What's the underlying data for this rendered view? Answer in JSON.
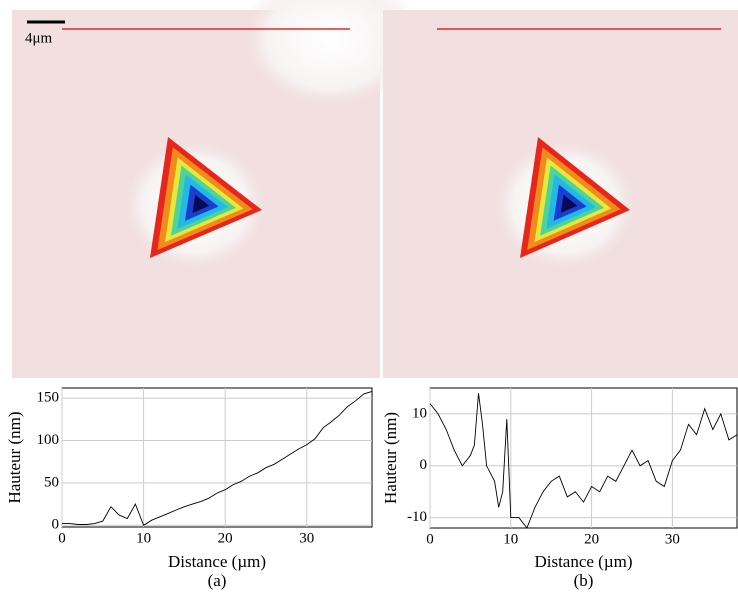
{
  "scale_bar": "4μm",
  "chart_data": [
    {
      "type": "line",
      "caption": "(a)",
      "x_label": "Distance (µm)",
      "y_label": "Hauteur (nm)",
      "color": "#000000",
      "grid": true,
      "xlim": [
        0,
        38
      ],
      "ylim": [
        -2,
        162
      ],
      "xticks": [
        0,
        10,
        20,
        30
      ],
      "yticks": [
        0,
        50,
        100,
        150
      ],
      "x": [
        0,
        1,
        2,
        3,
        4,
        5,
        6,
        7,
        8,
        9,
        10,
        11,
        12,
        13,
        14,
        15,
        16,
        17,
        18,
        19,
        20,
        21,
        22,
        23,
        24,
        25,
        26,
        27,
        28,
        29,
        30,
        31,
        32,
        33,
        34,
        35,
        36,
        37,
        38
      ],
      "values": [
        2,
        2,
        1,
        1,
        2,
        5,
        22,
        12,
        8,
        25,
        0,
        6,
        10,
        14,
        18,
        22,
        25,
        28,
        32,
        38,
        42,
        48,
        52,
        58,
        62,
        68,
        72,
        78,
        84,
        90,
        95,
        102,
        115,
        122,
        130,
        140,
        147,
        155,
        158
      ]
    },
    {
      "type": "line",
      "caption": "(b)",
      "x_label": "Distance (µm)",
      "y_label": "Hauteur (nm)",
      "color": "#000000",
      "grid": true,
      "xlim": [
        0,
        38
      ],
      "ylim": [
        -12,
        15
      ],
      "xticks": [
        0,
        10,
        20,
        30
      ],
      "yticks": [
        -10,
        0,
        10
      ],
      "x": [
        0,
        1,
        2,
        3,
        4,
        5,
        5.5,
        6,
        6.5,
        7,
        8,
        8.5,
        9,
        9.5,
        10,
        11,
        12,
        13,
        14,
        15,
        16,
        17,
        18,
        19,
        20,
        21,
        22,
        23,
        24,
        25,
        26,
        27,
        28,
        29,
        30,
        31,
        32,
        33,
        34,
        35,
        36,
        37,
        38
      ],
      "values": [
        12,
        10,
        7,
        3,
        0,
        2,
        4,
        14,
        8,
        0,
        -3,
        -8,
        -5,
        9,
        -10,
        -10,
        -12,
        -8,
        -5,
        -3,
        -2,
        -6,
        -5,
        -7,
        -4,
        -5,
        -2,
        -3,
        0,
        3,
        0,
        1,
        -3,
        -4,
        1,
        3,
        8,
        6,
        11,
        7,
        10,
        5,
        6
      ]
    }
  ]
}
